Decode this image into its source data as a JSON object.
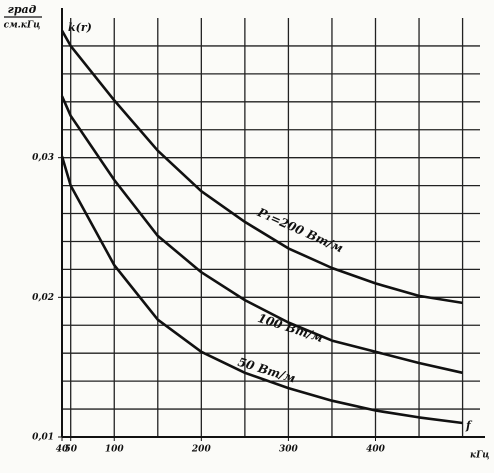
{
  "chart_data": {
    "type": "line",
    "y_axis_label_top": "град",
    "y_axis_label_bottom": "см.кГц",
    "y_axis_symbol": "k(r)",
    "x_axis_symbol": "f",
    "x_axis_unit": "кГц",
    "x": [
      40,
      50,
      100,
      150,
      200,
      250,
      300,
      350,
      400,
      450,
      500
    ],
    "series": [
      {
        "name": "P₁=200 Вт/м",
        "color": "#111111",
        "values": [
          0.0391,
          0.038,
          0.0341,
          0.0305,
          0.0276,
          0.0254,
          0.0235,
          0.0221,
          0.021,
          0.0201,
          0.0196
        ]
      },
      {
        "name": "100 Вт/м",
        "color": "#111111",
        "values": [
          0.0344,
          0.033,
          0.0284,
          0.0244,
          0.0218,
          0.0198,
          0.0182,
          0.0169,
          0.0161,
          0.0153,
          0.0146
        ]
      },
      {
        "name": "50 Вт/м",
        "color": "#111111",
        "values": [
          0.0301,
          0.028,
          0.0223,
          0.0184,
          0.0161,
          0.0146,
          0.0135,
          0.0126,
          0.0119,
          0.0114,
          0.011
        ]
      }
    ],
    "xlim": [
      40,
      520
    ],
    "ylim": [
      0.01,
      0.04
    ],
    "xticks": [
      {
        "value": 40,
        "label": "40"
      },
      {
        "value": 50,
        "label": "50"
      },
      100,
      200,
      300,
      400
    ],
    "yticks": [
      {
        "value": 0.01,
        "label": "0,01"
      },
      {
        "value": 0.02,
        "label": "0,02"
      },
      {
        "value": 0.03,
        "label": "0,03"
      }
    ],
    "xgrid": [
      50,
      100,
      150,
      200,
      250,
      300,
      350,
      400,
      450,
      500
    ],
    "ygrid": [
      0.012,
      0.014,
      0.016,
      0.018,
      0.02,
      0.022,
      0.024,
      0.026,
      0.028,
      0.03,
      0.032,
      0.034,
      0.036,
      0.038
    ],
    "grid": true
  }
}
